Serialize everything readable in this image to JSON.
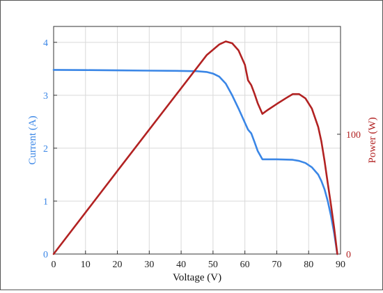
{
  "chart_data": {
    "type": "line",
    "xlabel": "Voltage (V)",
    "ylabel_left": "Current (A)",
    "ylabel_right": "Power (W)",
    "xlim": [
      0,
      90
    ],
    "ylim_left": [
      0,
      4.3
    ],
    "ylim_right": [
      0,
      190
    ],
    "xticks": [
      "0",
      "10",
      "20",
      "30",
      "40",
      "50",
      "60",
      "70",
      "80",
      "90"
    ],
    "yticks_left": [
      "0",
      "1",
      "2",
      "3",
      "4"
    ],
    "yticks_right": [
      "0",
      "100"
    ],
    "grid": true,
    "series": [
      {
        "axis": "left",
        "color": "#3a86e6",
        "x": [
          0,
          10,
          20,
          30,
          40,
          45,
          48,
          50,
          52,
          54,
          56,
          58,
          60,
          61,
          62,
          63,
          64,
          65.5,
          67,
          70,
          73,
          75,
          77,
          79,
          81,
          83,
          84,
          85,
          86,
          87,
          88,
          88.5,
          89
        ],
        "y": [
          3.48,
          3.475,
          3.47,
          3.465,
          3.46,
          3.455,
          3.44,
          3.41,
          3.35,
          3.22,
          3.0,
          2.75,
          2.48,
          2.35,
          2.28,
          2.12,
          1.95,
          1.79,
          1.79,
          1.79,
          1.785,
          1.78,
          1.76,
          1.72,
          1.64,
          1.5,
          1.38,
          1.22,
          1.0,
          0.72,
          0.4,
          0.2,
          0.0
        ]
      },
      {
        "axis": "right",
        "color": "#b22222",
        "x": [
          0,
          10,
          20,
          30,
          40,
          48,
          52,
          54,
          56,
          58,
          60,
          61,
          62,
          63,
          64,
          65.5,
          67,
          70,
          73,
          75,
          77,
          79,
          81,
          83,
          84,
          85,
          86,
          87,
          88,
          89
        ],
        "y": [
          0,
          34.7,
          69.4,
          103.9,
          138.4,
          166,
          175,
          177.5,
          176,
          170,
          158,
          145,
          141,
          134,
          126,
          117,
          120,
          125.3,
          130.3,
          133.5,
          133.5,
          130,
          121.5,
          106,
          94,
          77.6,
          59,
          41,
          22,
          0
        ]
      }
    ]
  }
}
